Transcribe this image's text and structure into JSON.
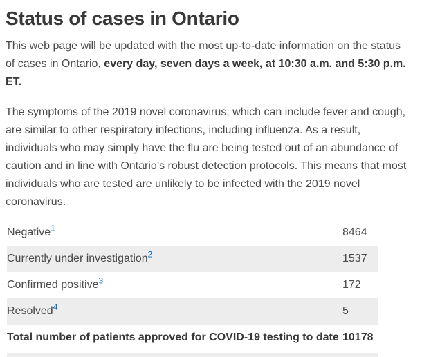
{
  "page": {
    "title": "Status of cases in Ontario",
    "intro": {
      "text": "This web page will be updated with the most up-to-date information on the status of cases in Ontario, ",
      "bold_text": "every day, seven days a week, at 10:30 a.m. and 5:30 p.m. ET."
    },
    "symptoms_paragraph": "The symptoms of the 2019 novel coronavirus, which can include fever and cough, are similar to other respiratory infections, including influenza. As a result, individuals who may simply have the flu are being tested out of an abundance of caution and in line with Ontario’s robust detection protocols. This means that most individuals who are tested are unlikely to be infected with the 2019 novel coronavirus."
  },
  "status_table": {
    "rows": [
      {
        "label": "Negative",
        "footnote_ref": "1",
        "value": "8464"
      },
      {
        "label": "Currently under investigation",
        "footnote_ref": "2",
        "value": "1537"
      },
      {
        "label": "Confirmed positive",
        "footnote_ref": "3",
        "value": "172"
      },
      {
        "label": "Resolved",
        "footnote_ref": "4",
        "value": "5"
      }
    ],
    "total": {
      "label": "Total number of patients approved for COVID-19 testing to date",
      "value": "10178"
    }
  },
  "colors": {
    "heading_text": "#383838",
    "body_text": "#4a4a4a",
    "footnote_link": "#0066cc",
    "row_alt_background": "#ededed"
  }
}
